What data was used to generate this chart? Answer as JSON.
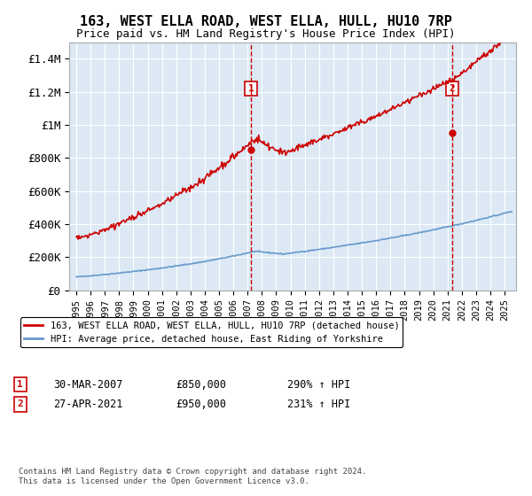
{
  "title": "163, WEST ELLA ROAD, WEST ELLA, HULL, HU10 7RP",
  "subtitle": "Price paid vs. HM Land Registry's House Price Index (HPI)",
  "bg_color": "#dce9f5",
  "fig_bg": "#ffffff",
  "red_line_color": "#cc0000",
  "blue_line_color": "#6699cc",
  "marker1_x": 2007.23,
  "marker1_y": 850000,
  "marker2_x": 2021.32,
  "marker2_y": 950000,
  "legend_line1": "163, WEST ELLA ROAD, WEST ELLA, HULL, HU10 7RP (detached house)",
  "legend_line2": "HPI: Average price, detached house, East Riding of Yorkshire",
  "footer": "Contains HM Land Registry data © Crown copyright and database right 2024.\nThis data is licensed under the Open Government Licence v3.0.",
  "ylim": [
    0,
    1500000
  ],
  "xlim_start": 1994.5,
  "xlim_end": 2025.8,
  "yticks": [
    0,
    200000,
    400000,
    600000,
    800000,
    1000000,
    1200000,
    1400000
  ],
  "ytick_labels": [
    "£0",
    "£200K",
    "£400K",
    "£600K",
    "£800K",
    "£1M",
    "£1.2M",
    "£1.4M"
  ],
  "xticks": [
    1995,
    1996,
    1997,
    1998,
    1999,
    2000,
    2001,
    2002,
    2003,
    2004,
    2005,
    2006,
    2007,
    2008,
    2009,
    2010,
    2011,
    2012,
    2013,
    2014,
    2015,
    2016,
    2017,
    2018,
    2019,
    2020,
    2021,
    2022,
    2023,
    2024,
    2025
  ]
}
